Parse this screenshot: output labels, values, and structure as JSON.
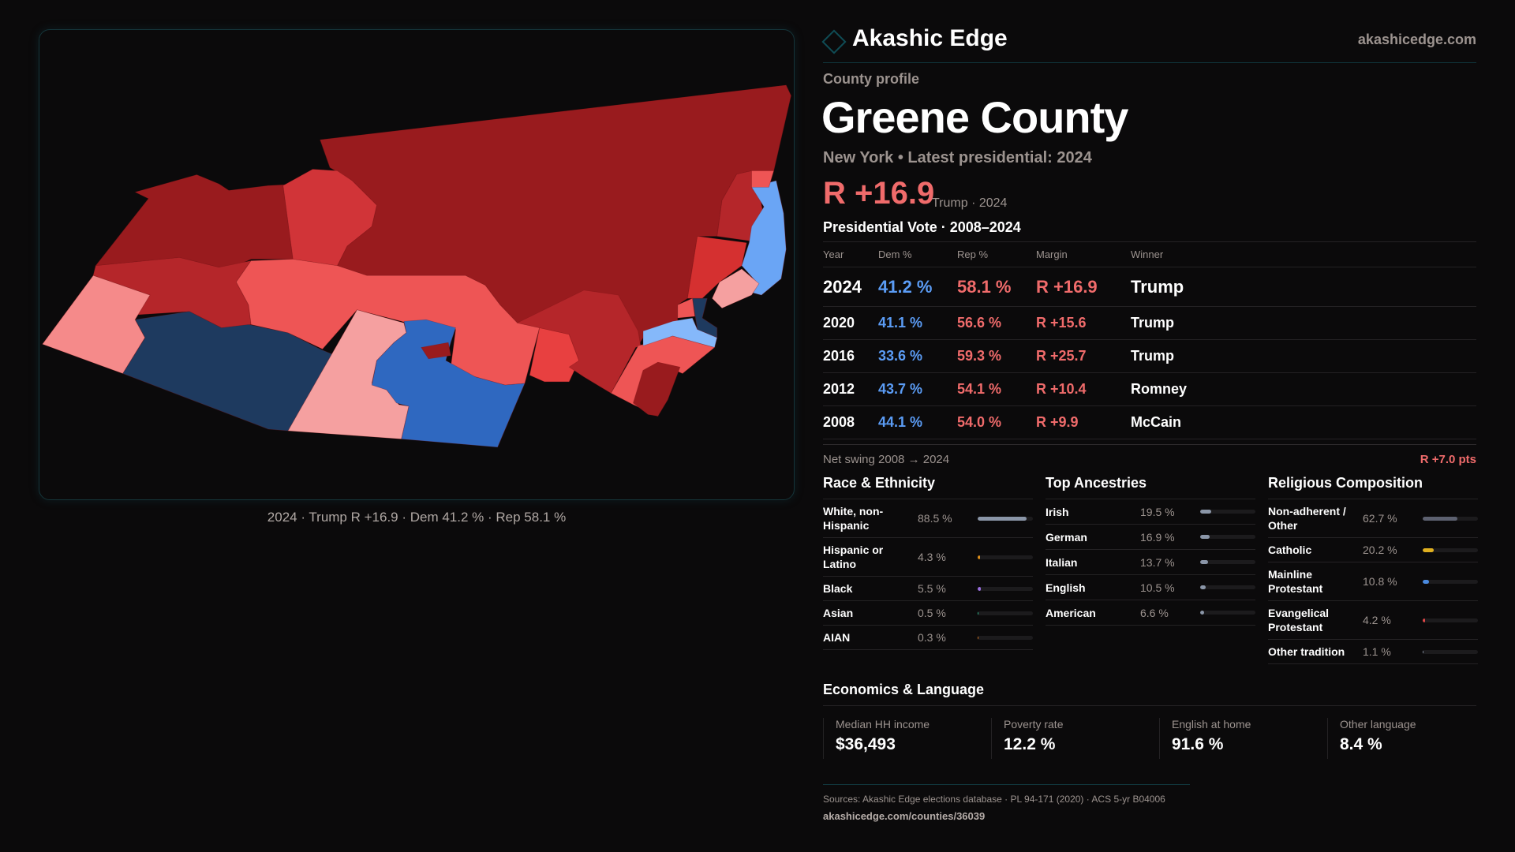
{
  "brand": {
    "name": "Akashic Edge",
    "site": "akashicedge.com"
  },
  "profile": {
    "eyebrow": "County profile",
    "title": "Greene County",
    "subtitle": "New York  • Latest presidential: 2024",
    "margin": "R +16.9",
    "margin_sub": "Trump · 2024"
  },
  "map": {
    "caption": "2024 · Trump R +16.9 · Dem 41.2 % · Rep 58.1 %"
  },
  "vote": {
    "title": "Presidential Vote · 2008–2024",
    "headers": [
      "Year",
      "Dem %",
      "Rep %",
      "Margin",
      "Winner"
    ],
    "rows": [
      [
        "2024",
        "41.2 %",
        "58.1 %",
        "R +16.9",
        "Trump"
      ],
      [
        "2020",
        "41.1 %",
        "56.6 %",
        "R +15.6",
        "Trump"
      ],
      [
        "2016",
        "33.6 %",
        "59.3 %",
        "R +25.7",
        "Trump"
      ],
      [
        "2012",
        "43.7 %",
        "54.1 %",
        "R +10.4",
        "Romney"
      ],
      [
        "2008",
        "44.1 %",
        "54.0 %",
        "R +9.9",
        "McCain"
      ]
    ],
    "swing_label": "Net swing 2008 → 2024",
    "swing_value": "R +7.0 pts"
  },
  "race": {
    "title": "Race & Ethnicity",
    "items": [
      {
        "label": "White, non-Hispanic",
        "value": "88.5 %",
        "pct": 88.5,
        "color": "#8b96a8"
      },
      {
        "label": "Hispanic or Latino",
        "value": "4.3 %",
        "pct": 4.3,
        "color": "#e0901a"
      },
      {
        "label": "Black",
        "value": "5.5 %",
        "pct": 5.5,
        "color": "#9a6fe0"
      },
      {
        "label": "Asian",
        "value": "0.5 %",
        "pct": 0.5,
        "color": "#2fc090"
      },
      {
        "label": "AIAN",
        "value": "0.3 %",
        "pct": 0.3,
        "color": "#e07a20"
      }
    ]
  },
  "ancestry": {
    "title": "Top Ancestries",
    "items": [
      {
        "label": "Irish",
        "value": "19.5 %",
        "pct": 19.5,
        "color": "#8b96a8"
      },
      {
        "label": "German",
        "value": "16.9 %",
        "pct": 16.9,
        "color": "#8b96a8"
      },
      {
        "label": "Italian",
        "value": "13.7 %",
        "pct": 13.7,
        "color": "#8b96a8"
      },
      {
        "label": "English",
        "value": "10.5 %",
        "pct": 10.5,
        "color": "#8b96a8"
      },
      {
        "label": "American",
        "value": "6.6 %",
        "pct": 6.6,
        "color": "#8b96a8"
      }
    ]
  },
  "religion": {
    "title": "Religious Composition",
    "items": [
      {
        "label": "Non-adherent / Other",
        "value": "62.7 %",
        "pct": 62.7,
        "color": "#5d6170"
      },
      {
        "label": "Catholic",
        "value": "20.2 %",
        "pct": 20.2,
        "color": "#e0b020"
      },
      {
        "label": "Mainline Protestant",
        "value": "10.8 %",
        "pct": 10.8,
        "color": "#4a8ae0"
      },
      {
        "label": "Evangelical Protestant",
        "value": "4.2 %",
        "pct": 4.2,
        "color": "#e04848"
      },
      {
        "label": "Other tradition",
        "value": "1.1 %",
        "pct": 1.1,
        "color": "#8b96a8"
      }
    ]
  },
  "economics": {
    "title": "Economics & Language",
    "cards": [
      {
        "label": "Median HH income",
        "value": "$36,493"
      },
      {
        "label": "Poverty rate",
        "value": "12.2 %"
      },
      {
        "label": "English at home",
        "value": "91.6 %"
      },
      {
        "label": "Other language",
        "value": "8.4 %"
      }
    ]
  },
  "footer": {
    "sources": "Sources: Akashic Edge elections database · PL 94-171 (2020) · ACS 5-yr B04006",
    "url": "akashicedge.com/counties/36039"
  }
}
